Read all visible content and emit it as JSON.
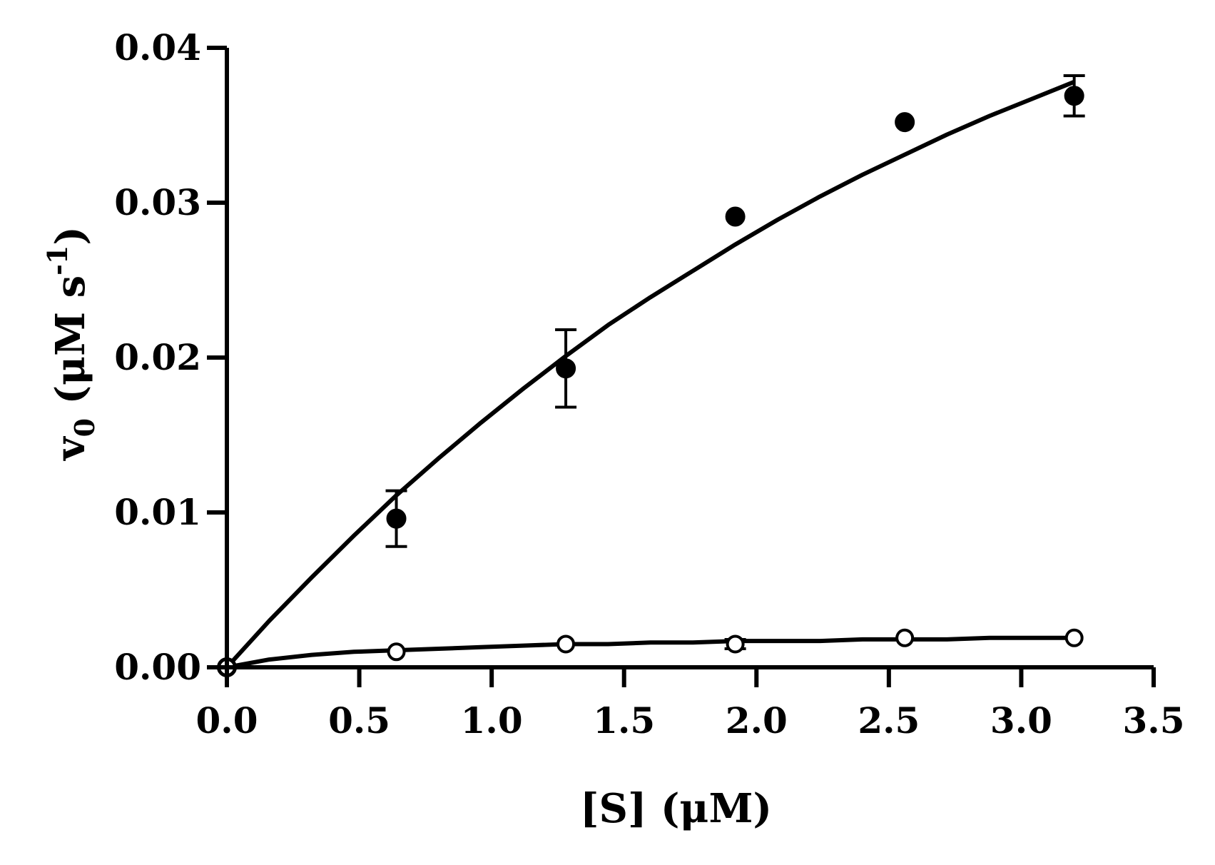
{
  "chart_data": {
    "type": "scatter",
    "title": "",
    "xlabel": "[S] (μM)",
    "ylabel": {
      "symbol": "v",
      "subscript": "0",
      "unit_open": " (μM s",
      "superscript": "-1",
      "unit_close": ")"
    },
    "xlim": [
      0,
      3.5
    ],
    "ylim": [
      0,
      0.04
    ],
    "x_ticks": [
      "0.0",
      "0.5",
      "1.0",
      "1.5",
      "2.0",
      "2.5",
      "3.0",
      "3.5"
    ],
    "y_ticks": [
      "0.00",
      "0.01",
      "0.02",
      "0.03",
      "0.04"
    ],
    "grid": false,
    "legend": "none",
    "series": [
      {
        "marker": "filled-circle",
        "x": [
          0.0,
          0.64,
          1.28,
          1.92,
          2.56,
          3.2
        ],
        "y": [
          0.0,
          0.0096,
          0.0193,
          0.0291,
          0.0352,
          0.0369
        ],
        "error": [
          0.0,
          0.0018,
          0.0025,
          0.0,
          0.0,
          0.0013
        ],
        "fit_curve": {
          "x": [
            0.0,
            0.16,
            0.32,
            0.48,
            0.64,
            0.8,
            0.96,
            1.12,
            1.28,
            1.44,
            1.6,
            1.76,
            1.92,
            2.08,
            2.24,
            2.4,
            2.56,
            2.72,
            2.88,
            3.04,
            3.2
          ],
          "y": [
            0.0,
            0.003,
            0.0058,
            0.0085,
            0.0111,
            0.0135,
            0.0158,
            0.018,
            0.0201,
            0.0221,
            0.0239,
            0.0256,
            0.0273,
            0.0289,
            0.0304,
            0.0318,
            0.0331,
            0.0344,
            0.0356,
            0.0367,
            0.0378
          ]
        }
      },
      {
        "marker": "open-circle",
        "x": [
          0.0,
          0.64,
          1.28,
          1.92,
          2.56,
          3.2
        ],
        "y": [
          0.0,
          0.001,
          0.0015,
          0.0015,
          0.0019,
          0.0019
        ],
        "error": [
          0.0,
          0.0,
          0.0,
          0.0003,
          0.0,
          0.0
        ],
        "fit_curve": {
          "x": [
            0.0,
            0.16,
            0.32,
            0.48,
            0.64,
            0.8,
            0.96,
            1.12,
            1.28,
            1.44,
            1.6,
            1.76,
            1.92,
            2.08,
            2.24,
            2.4,
            2.56,
            2.72,
            2.88,
            3.04,
            3.2
          ],
          "y": [
            0.0,
            0.0005,
            0.0008,
            0.001,
            0.0011,
            0.0012,
            0.0013,
            0.0014,
            0.0015,
            0.0015,
            0.0016,
            0.0016,
            0.0017,
            0.0017,
            0.0017,
            0.0018,
            0.0018,
            0.0018,
            0.0019,
            0.0019,
            0.0019
          ]
        }
      }
    ]
  }
}
